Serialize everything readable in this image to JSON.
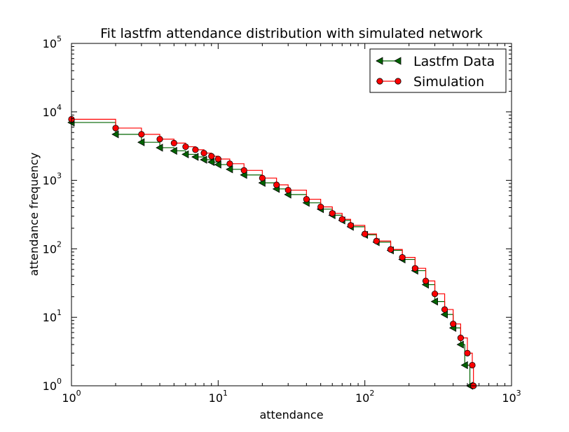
{
  "chart_data": {
    "type": "line",
    "title": "Fit lastfm attendance distribution with simulated network",
    "xlabel": "attendance",
    "ylabel": "attendance frequency",
    "xscale": "log",
    "yscale": "log",
    "xlim": [
      1,
      1000
    ],
    "ylim": [
      1,
      100000
    ],
    "xticks": [
      {
        "value": 1,
        "base": "10",
        "exp": "0"
      },
      {
        "value": 10,
        "base": "10",
        "exp": "1"
      },
      {
        "value": 100,
        "base": "10",
        "exp": "2"
      },
      {
        "value": 1000,
        "base": "10",
        "exp": "3"
      }
    ],
    "yticks": [
      {
        "value": 1,
        "base": "10",
        "exp": "0"
      },
      {
        "value": 10,
        "base": "10",
        "exp": "1"
      },
      {
        "value": 100,
        "base": "10",
        "exp": "2"
      },
      {
        "value": 1000,
        "base": "10",
        "exp": "3"
      },
      {
        "value": 10000,
        "base": "10",
        "exp": "4"
      },
      {
        "value": 100000,
        "base": "10",
        "exp": "5"
      }
    ],
    "legend_position": "top-right",
    "series": [
      {
        "name": "Lastfm Data",
        "color": "#006400",
        "marker": "triangle-left",
        "marker_color": "#006400",
        "points": [
          [
            1,
            7000
          ],
          [
            2,
            4700
          ],
          [
            3,
            3600
          ],
          [
            4,
            3000
          ],
          [
            5,
            2700
          ],
          [
            6,
            2400
          ],
          [
            7,
            2200
          ],
          [
            8,
            2000
          ],
          [
            9,
            1850
          ],
          [
            10,
            1700
          ],
          [
            12,
            1450
          ],
          [
            15,
            1200
          ],
          [
            20,
            920
          ],
          [
            25,
            750
          ],
          [
            30,
            620
          ],
          [
            40,
            470
          ],
          [
            50,
            380
          ],
          [
            60,
            310
          ],
          [
            70,
            260
          ],
          [
            80,
            210
          ],
          [
            100,
            160
          ],
          [
            120,
            125
          ],
          [
            150,
            95
          ],
          [
            180,
            70
          ],
          [
            220,
            48
          ],
          [
            260,
            30
          ],
          [
            300,
            17
          ],
          [
            350,
            11
          ],
          [
            400,
            7
          ],
          [
            450,
            4
          ],
          [
            480,
            2
          ],
          [
            520,
            1
          ]
        ]
      },
      {
        "name": "Simulation",
        "color": "#ff0000",
        "marker": "circle",
        "marker_color": "#ff0000",
        "points": [
          [
            1,
            7800
          ],
          [
            2,
            5800
          ],
          [
            3,
            4700
          ],
          [
            4,
            4000
          ],
          [
            5,
            3500
          ],
          [
            6,
            3100
          ],
          [
            7,
            2800
          ],
          [
            8,
            2500
          ],
          [
            9,
            2250
          ],
          [
            10,
            2050
          ],
          [
            12,
            1750
          ],
          [
            15,
            1400
          ],
          [
            20,
            1080
          ],
          [
            25,
            860
          ],
          [
            30,
            720
          ],
          [
            40,
            530
          ],
          [
            50,
            410
          ],
          [
            60,
            330
          ],
          [
            70,
            270
          ],
          [
            80,
            220
          ],
          [
            100,
            165
          ],
          [
            120,
            130
          ],
          [
            150,
            98
          ],
          [
            180,
            75
          ],
          [
            220,
            52
          ],
          [
            260,
            34
          ],
          [
            300,
            22
          ],
          [
            350,
            13
          ],
          [
            400,
            8
          ],
          [
            450,
            5
          ],
          [
            500,
            3
          ],
          [
            540,
            2
          ],
          [
            550,
            1
          ]
        ]
      }
    ]
  }
}
